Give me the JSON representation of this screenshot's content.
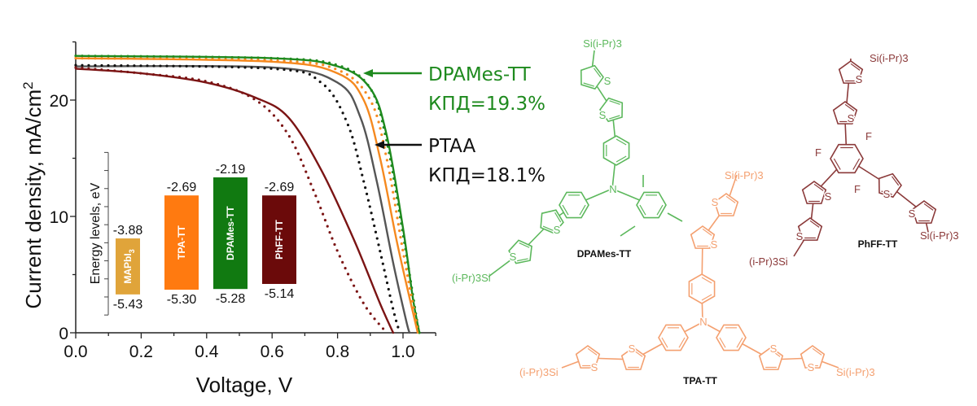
{
  "chart_data": {
    "type": "line",
    "xlabel": "Voltage, V",
    "ylabel": "Current density, mA/cm",
    "ylabel_sup": "2",
    "xlim": [
      0,
      1.1
    ],
    "ylim": [
      0,
      25
    ],
    "xticks": [
      "0.0",
      "0.2",
      "0.4",
      "0.6",
      "0.8",
      "1.0"
    ],
    "yticks": [
      "0",
      "10",
      "20"
    ],
    "grid": false,
    "series": [
      {
        "color": "#1e8a1e",
        "style": "solid",
        "x": [
          0,
          0.6,
          0.8,
          0.9,
          0.95,
          1.0,
          1.03,
          1.05
        ],
        "y": [
          23.8,
          23.6,
          22.9,
          21.0,
          17.0,
          9.0,
          3.0,
          0
        ]
      },
      {
        "color": "#1e8a1e",
        "style": "dotted",
        "x": [
          0,
          0.6,
          0.8,
          0.9,
          0.95,
          1.0,
          1.04,
          1.05
        ],
        "y": [
          23.8,
          23.6,
          23.0,
          21.0,
          16.5,
          8.5,
          1.5,
          0
        ]
      },
      {
        "color": "#f5891f",
        "style": "solid",
        "x": [
          0,
          0.6,
          0.8,
          0.88,
          0.93,
          0.98,
          1.02,
          1.045
        ],
        "y": [
          23.6,
          23.3,
          22.3,
          20.0,
          15.0,
          8.0,
          3.0,
          0
        ]
      },
      {
        "color": "#f5891f",
        "style": "dotted",
        "x": [
          0,
          0.6,
          0.8,
          0.9,
          0.95,
          1.0,
          1.04,
          1.045
        ],
        "y": [
          23.6,
          23.4,
          22.6,
          20.0,
          15.0,
          7.0,
          1.0,
          0
        ]
      },
      {
        "color": "#555555",
        "style": "solid",
        "x": [
          0,
          0.6,
          0.8,
          0.87,
          0.92,
          0.97,
          1.01,
          1.02
        ],
        "y": [
          22.9,
          22.8,
          21.5,
          18.5,
          13.0,
          6.0,
          1.0,
          0
        ]
      },
      {
        "color": "#111111",
        "style": "dotted",
        "x": [
          0,
          0.6,
          0.75,
          0.83,
          0.88,
          0.93,
          0.97,
          0.99
        ],
        "y": [
          23.0,
          22.7,
          21.5,
          18.0,
          13.0,
          7.0,
          2.0,
          0
        ]
      },
      {
        "color": "#7b1414",
        "style": "solid",
        "x": [
          0,
          0.2,
          0.4,
          0.55,
          0.65,
          0.75,
          0.85,
          0.93,
          0.97
        ],
        "y": [
          22.7,
          22.3,
          21.5,
          20.2,
          18.5,
          14.0,
          8.0,
          2.5,
          0
        ]
      },
      {
        "color": "#7b1414",
        "style": "dotted",
        "x": [
          0,
          0.2,
          0.4,
          0.55,
          0.65,
          0.73,
          0.8,
          0.88,
          0.95
        ],
        "y": [
          22.8,
          22.3,
          21.6,
          20.0,
          17.0,
          12.0,
          7.0,
          2.5,
          0
        ]
      }
    ],
    "annotations": [
      {
        "line1": "DPAMes-TT",
        "line2": "КПД=19.3%",
        "color": "#1e8a1e"
      },
      {
        "line1": "PTAA",
        "line2": "КПД=18.1%",
        "color": "#111111"
      }
    ],
    "inset": {
      "type": "bar",
      "ylabel": "Energy levels, eV",
      "ylim": [
        -6.0,
        -1.5
      ],
      "bars": [
        {
          "name": "MAPbI",
          "sub": "3",
          "top": -3.88,
          "bottom": -5.43,
          "top_label": "-3.88",
          "bottom_label": "-5.43",
          "color": "#e0a43a"
        },
        {
          "name": "TPA-TT",
          "sub": "",
          "top": -2.69,
          "bottom": -5.3,
          "top_label": "-2.69",
          "bottom_label": "-5.30",
          "color": "#ff7a10"
        },
        {
          "name": "DPAMes-TT",
          "sub": "",
          "top": -2.19,
          "bottom": -5.28,
          "top_label": "-2.19",
          "bottom_label": "-5.28",
          "color": "#117a11"
        },
        {
          "name": "PhFF-TT",
          "sub": "",
          "top": -2.69,
          "bottom": -5.14,
          "top_label": "-2.69",
          "bottom_label": "-5.14",
          "color": "#6b0a0a"
        }
      ]
    }
  },
  "molecules": {
    "dpames": {
      "name": "DPAMes-TT",
      "color": "#5cb85c",
      "n": "N",
      "s": "S",
      "si_top": "Si(i-Pr)3",
      "si_left": "(i-Pr)3Si"
    },
    "phff": {
      "name": "PhFF-TT",
      "color": "#8b3a3a",
      "s": "S",
      "f": "F",
      "si_top": "Si(i-Pr)3",
      "si_right": "Si(i-Pr)3",
      "si_left": "(i-Pr)3Si"
    },
    "tpa": {
      "name": "TPA-TT",
      "color": "#f4a070",
      "n": "N",
      "s": "S",
      "si_top": "Si(i-Pr)3",
      "si_left": "(i-Pr)3Si",
      "si_right": "Si(i-Pr)3"
    }
  }
}
